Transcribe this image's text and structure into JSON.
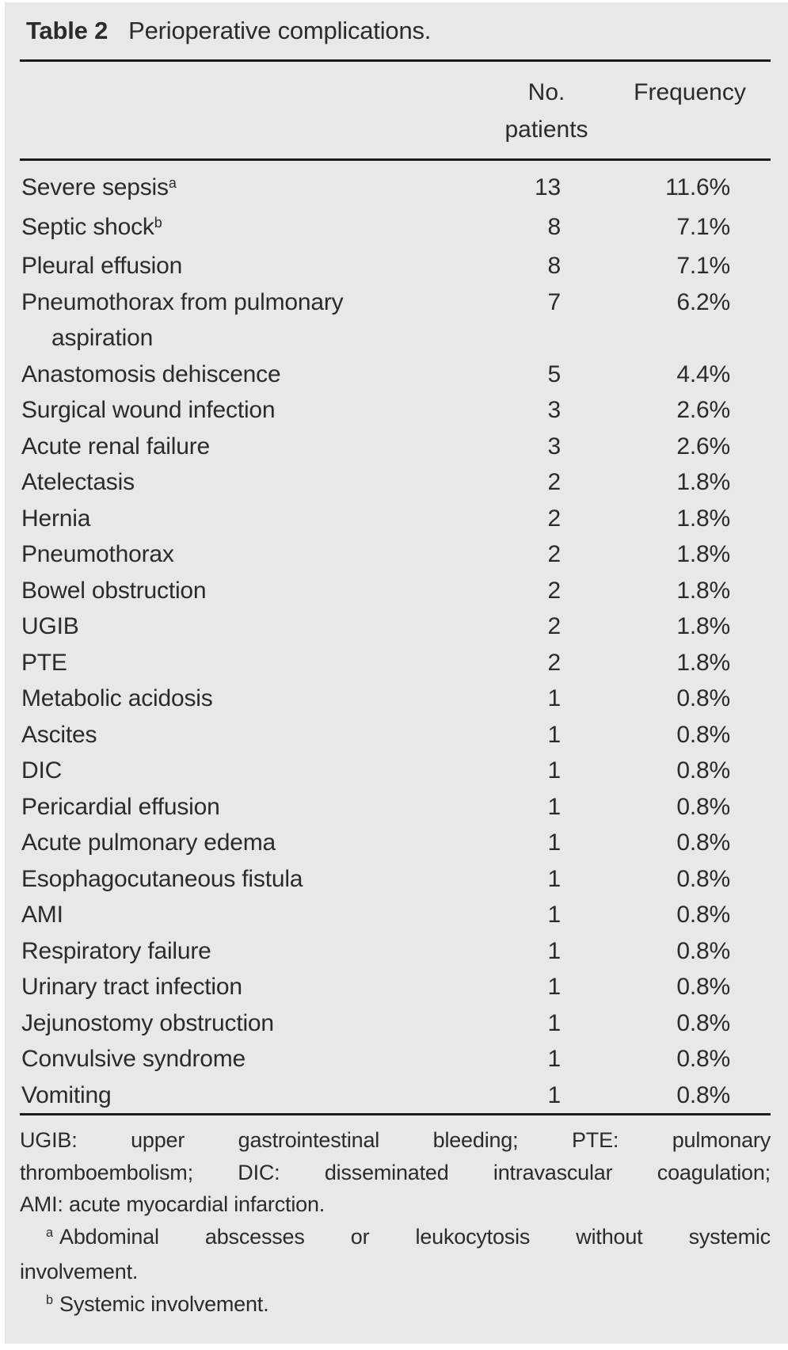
{
  "title": {
    "label": "Table 2",
    "text": "Perioperative complications."
  },
  "header": {
    "col_patients_line1": "No.",
    "col_patients_line2": "patients",
    "col_frequency": "Frequency"
  },
  "rows": [
    {
      "name": "Severe sepsis",
      "sup": "a",
      "no": "13",
      "freq": "11.6%"
    },
    {
      "name": "Septic shock",
      "sup": "b",
      "no": "8",
      "freq": "7.1%"
    },
    {
      "name": "Pleural effusion",
      "no": "8",
      "freq": "7.1%"
    },
    {
      "name": "Pneumothorax from pulmonary",
      "wrap": "aspiration",
      "no": "7",
      "freq": "6.2%"
    },
    {
      "name": "Anastomosis dehiscence",
      "no": "5",
      "freq": "4.4%"
    },
    {
      "name": "Surgical wound infection",
      "no": "3",
      "freq": "2.6%"
    },
    {
      "name": "Acute renal failure",
      "no": "3",
      "freq": "2.6%"
    },
    {
      "name": "Atelectasis",
      "no": "2",
      "freq": "1.8%"
    },
    {
      "name": "Hernia",
      "no": "2",
      "freq": "1.8%"
    },
    {
      "name": "Pneumothorax",
      "no": "2",
      "freq": "1.8%"
    },
    {
      "name": "Bowel obstruction",
      "no": "2",
      "freq": "1.8%"
    },
    {
      "name": "UGIB",
      "no": "2",
      "freq": "1.8%"
    },
    {
      "name": "PTE",
      "no": "2",
      "freq": "1.8%"
    },
    {
      "name": "Metabolic acidosis",
      "no": "1",
      "freq": "0.8%"
    },
    {
      "name": "Ascites",
      "no": "1",
      "freq": "0.8%"
    },
    {
      "name": "DIC",
      "no": "1",
      "freq": "0.8%"
    },
    {
      "name": "Pericardial effusion",
      "no": "1",
      "freq": "0.8%"
    },
    {
      "name": "Acute pulmonary edema",
      "no": "1",
      "freq": "0.8%"
    },
    {
      "name": "Esophagocutaneous fistula",
      "no": "1",
      "freq": "0.8%"
    },
    {
      "name": "AMI",
      "no": "1",
      "freq": "0.8%"
    },
    {
      "name": "Respiratory failure",
      "no": "1",
      "freq": "0.8%"
    },
    {
      "name": "Urinary tract infection",
      "no": "1",
      "freq": "0.8%"
    },
    {
      "name": "Jejunostomy obstruction",
      "no": "1",
      "freq": "0.8%"
    },
    {
      "name": "Convulsive syndrome",
      "no": "1",
      "freq": "0.8%"
    },
    {
      "name": "Vomiting",
      "no": "1",
      "freq": "0.8%"
    }
  ],
  "footnotes": {
    "lines": [
      {
        "text": "UGIB: upper gastrointestinal bleeding; PTE: pulmonary",
        "fill": true
      },
      {
        "text": "thromboembolism; DIC: disseminated intravascular coagulation;",
        "fill": true
      },
      {
        "text": "AMI: acute myocardial infarction."
      },
      {
        "sup": "a",
        "text": "Abdominal abscesses or leukocytosis without systemic",
        "fill": true,
        "indent": true
      },
      {
        "text": "involvement."
      },
      {
        "sup": "b",
        "text": "Systemic involvement.",
        "indent": true
      }
    ]
  },
  "colors": {
    "page": "#ffffff",
    "background": "#e8e8e8",
    "text": "#2b2b2b",
    "rule": "#1c1c1c"
  }
}
